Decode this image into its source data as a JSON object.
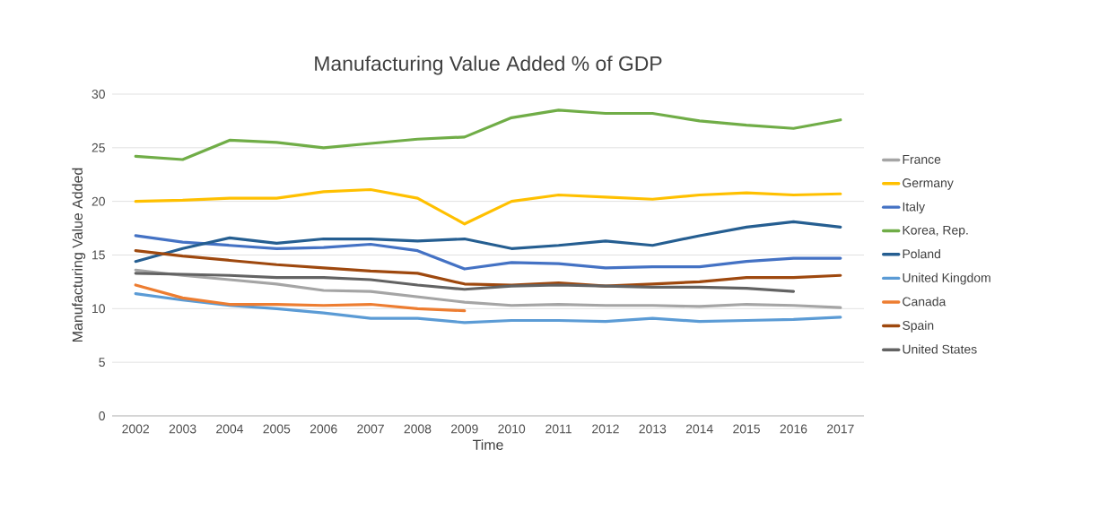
{
  "chart_data": {
    "type": "line",
    "title": "Manufacturing Value Added % of GDP",
    "xlabel": "Time",
    "ylabel": "Manufacturing Value Added",
    "categories": [
      "2002",
      "2003",
      "2004",
      "2005",
      "2006",
      "2007",
      "2008",
      "2009",
      "2010",
      "2011",
      "2012",
      "2013",
      "2014",
      "2015",
      "2016",
      "2017"
    ],
    "ylim": [
      0,
      30
    ],
    "yticks": [
      0,
      5,
      10,
      15,
      20,
      25,
      30
    ],
    "grid": "y",
    "legend": "right",
    "marker": "none",
    "line_style": "solid",
    "series": [
      {
        "name": "France",
        "color": "#a5a5a5",
        "values": [
          13.6,
          13.1,
          12.7,
          12.3,
          11.7,
          11.6,
          11.1,
          10.6,
          10.3,
          10.4,
          10.3,
          10.3,
          10.2,
          10.4,
          10.3,
          10.1
        ]
      },
      {
        "name": "Germany",
        "color": "#ffc000",
        "values": [
          20.0,
          20.1,
          20.3,
          20.3,
          20.9,
          21.1,
          20.3,
          17.9,
          20.0,
          20.6,
          20.4,
          20.2,
          20.6,
          20.8,
          20.6,
          20.7
        ]
      },
      {
        "name": "Italy",
        "color": "#4472c4",
        "values": [
          16.8,
          16.2,
          15.9,
          15.6,
          15.7,
          16.0,
          15.4,
          13.7,
          14.3,
          14.2,
          13.8,
          13.9,
          13.9,
          14.4,
          14.7,
          14.7
        ]
      },
      {
        "name": "Korea, Rep.",
        "color": "#70ad47",
        "values": [
          24.2,
          23.9,
          25.7,
          25.5,
          25.0,
          25.4,
          25.8,
          26.0,
          27.8,
          28.5,
          28.2,
          28.2,
          27.5,
          27.1,
          26.8,
          27.6
        ]
      },
      {
        "name": "Poland",
        "color": "#255e91",
        "values": [
          14.4,
          15.6,
          16.6,
          16.1,
          16.5,
          16.5,
          16.3,
          16.5,
          15.6,
          15.9,
          16.3,
          15.9,
          16.8,
          17.6,
          18.1,
          17.6
        ]
      },
      {
        "name": "United Kingdom",
        "color": "#5b9bd5",
        "values": [
          11.4,
          10.8,
          10.3,
          10.0,
          9.6,
          9.1,
          9.1,
          8.7,
          8.9,
          8.9,
          8.8,
          9.1,
          8.8,
          8.9,
          9.0,
          9.2
        ]
      },
      {
        "name": "Canada",
        "color": "#ed7d31",
        "values": [
          12.2,
          11.0,
          10.4,
          10.4,
          10.3,
          10.4,
          10.0,
          9.8,
          null,
          null,
          null,
          null,
          null,
          null,
          null,
          null
        ]
      },
      {
        "name": "Spain",
        "color": "#9e480e",
        "values": [
          15.4,
          14.9,
          14.5,
          14.1,
          13.8,
          13.5,
          13.3,
          12.3,
          12.2,
          12.4,
          12.1,
          12.3,
          12.5,
          12.9,
          12.9,
          13.1
        ]
      },
      {
        "name": "United States",
        "color": "#636363",
        "values": [
          13.3,
          13.2,
          13.1,
          12.9,
          12.9,
          12.7,
          12.2,
          11.8,
          12.1,
          12.2,
          12.1,
          12.0,
          12.0,
          11.9,
          11.6,
          null
        ]
      }
    ]
  }
}
